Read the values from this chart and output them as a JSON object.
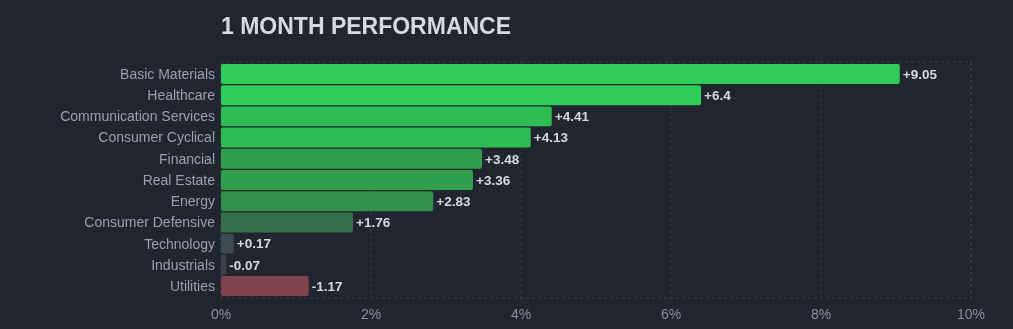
{
  "chart_data": {
    "type": "bar",
    "orientation": "horizontal",
    "title": "1 MONTH PERFORMANCE",
    "categories": [
      "Basic Materials",
      "Healthcare",
      "Communication Services",
      "Consumer Cyclical",
      "Financial",
      "Real Estate",
      "Energy",
      "Consumer Defensive",
      "Technology",
      "Industrials",
      "Utilities"
    ],
    "values": [
      9.05,
      6.4,
      4.41,
      4.13,
      3.48,
      3.36,
      2.83,
      1.76,
      0.17,
      -0.07,
      -1.17
    ],
    "base": [
      0,
      0,
      0,
      0,
      0,
      0,
      0,
      0,
      0,
      0.07,
      1.17
    ],
    "value_labels": [
      "+9.05",
      "+6.4",
      "+4.41",
      "+4.13",
      "+3.48",
      "+3.36",
      "+2.83",
      "+1.76",
      "+0.17",
      "-0.07",
      "-1.17"
    ],
    "colors": [
      "#30cc5a",
      "#30cc5a",
      "#2dbd53",
      "#2dbd53",
      "#2f9f4e",
      "#2f9f4e",
      "#31904c",
      "#35704a",
      "#3d4a52",
      "#3b404b",
      "#7f4350"
    ],
    "xlim": [
      0,
      10
    ],
    "xticks": [
      {
        "value": 0,
        "label": "0%"
      },
      {
        "value": 2,
        "label": "2%"
      },
      {
        "value": 4,
        "label": "4%"
      },
      {
        "value": 6,
        "label": "6%"
      },
      {
        "value": 8,
        "label": "8%"
      },
      {
        "value": 10,
        "label": "10%"
      }
    ],
    "grid": "x"
  }
}
